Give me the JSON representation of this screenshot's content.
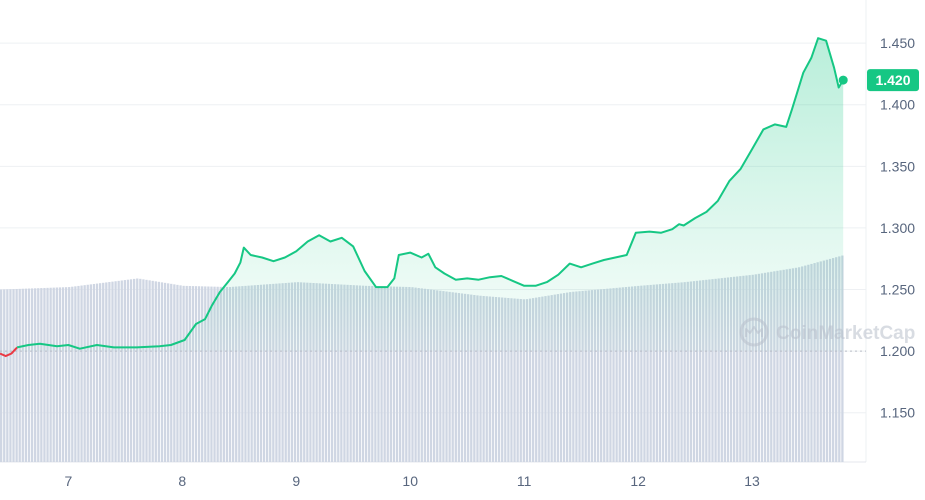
{
  "chart_data": {
    "type": "area",
    "baseline": 1.2,
    "current_price": 1.42,
    "current_price_label": "1.420",
    "watermark": "CoinMarketCap",
    "ylim": [
      1.11,
      1.485
    ],
    "xlim": [
      6.0,
      13.6
    ],
    "y_ticks": [
      {
        "value": 1.45,
        "label": "1.450"
      },
      {
        "value": 1.4,
        "label": "1.400"
      },
      {
        "value": 1.35,
        "label": "1.350"
      },
      {
        "value": 1.3,
        "label": "1.300"
      },
      {
        "value": 1.25,
        "label": "1.250"
      },
      {
        "value": 1.2,
        "label": "1.200"
      },
      {
        "value": 1.15,
        "label": "1.150"
      }
    ],
    "x_ticks": [
      {
        "value": 6.6,
        "label": "7"
      },
      {
        "value": 7.6,
        "label": "8"
      },
      {
        "value": 8.6,
        "label": "9"
      },
      {
        "value": 9.6,
        "label": "10"
      },
      {
        "value": 10.6,
        "label": "11"
      },
      {
        "value": 11.6,
        "label": "12"
      },
      {
        "value": 12.6,
        "label": "13"
      }
    ],
    "price": [
      [
        6.0,
        1.198
      ],
      [
        6.05,
        1.196
      ],
      [
        6.1,
        1.198
      ],
      [
        6.15,
        1.203
      ],
      [
        6.25,
        1.205
      ],
      [
        6.35,
        1.206
      ],
      [
        6.5,
        1.204
      ],
      [
        6.6,
        1.205
      ],
      [
        6.7,
        1.202
      ],
      [
        6.85,
        1.205
      ],
      [
        7.0,
        1.203
      ],
      [
        7.2,
        1.203
      ],
      [
        7.4,
        1.204
      ],
      [
        7.5,
        1.205
      ],
      [
        7.62,
        1.209
      ],
      [
        7.72,
        1.222
      ],
      [
        7.8,
        1.226
      ],
      [
        7.86,
        1.237
      ],
      [
        7.93,
        1.248
      ],
      [
        8.0,
        1.256
      ],
      [
        8.06,
        1.263
      ],
      [
        8.11,
        1.272
      ],
      [
        8.14,
        1.284
      ],
      [
        8.2,
        1.278
      ],
      [
        8.3,
        1.276
      ],
      [
        8.4,
        1.273
      ],
      [
        8.5,
        1.276
      ],
      [
        8.6,
        1.281
      ],
      [
        8.7,
        1.289
      ],
      [
        8.8,
        1.294
      ],
      [
        8.9,
        1.289
      ],
      [
        9.0,
        1.292
      ],
      [
        9.1,
        1.285
      ],
      [
        9.2,
        1.265
      ],
      [
        9.3,
        1.252
      ],
      [
        9.4,
        1.252
      ],
      [
        9.46,
        1.259
      ],
      [
        9.5,
        1.278
      ],
      [
        9.6,
        1.28
      ],
      [
        9.7,
        1.276
      ],
      [
        9.76,
        1.279
      ],
      [
        9.82,
        1.268
      ],
      [
        9.9,
        1.263
      ],
      [
        10.0,
        1.258
      ],
      [
        10.1,
        1.259
      ],
      [
        10.2,
        1.258
      ],
      [
        10.3,
        1.26
      ],
      [
        10.4,
        1.261
      ],
      [
        10.5,
        1.257
      ],
      [
        10.6,
        1.253
      ],
      [
        10.7,
        1.253
      ],
      [
        10.8,
        1.256
      ],
      [
        10.9,
        1.262
      ],
      [
        11.0,
        1.271
      ],
      [
        11.1,
        1.268
      ],
      [
        11.2,
        1.271
      ],
      [
        11.3,
        1.274
      ],
      [
        11.4,
        1.276
      ],
      [
        11.5,
        1.278
      ],
      [
        11.58,
        1.296
      ],
      [
        11.7,
        1.297
      ],
      [
        11.8,
        1.296
      ],
      [
        11.9,
        1.299
      ],
      [
        11.96,
        1.303
      ],
      [
        12.0,
        1.302
      ],
      [
        12.1,
        1.308
      ],
      [
        12.2,
        1.313
      ],
      [
        12.3,
        1.322
      ],
      [
        12.4,
        1.338
      ],
      [
        12.5,
        1.348
      ],
      [
        12.6,
        1.364
      ],
      [
        12.7,
        1.38
      ],
      [
        12.8,
        1.384
      ],
      [
        12.9,
        1.382
      ],
      [
        12.95,
        1.396
      ],
      [
        13.0,
        1.411
      ],
      [
        13.05,
        1.426
      ],
      [
        13.12,
        1.438
      ],
      [
        13.18,
        1.454
      ],
      [
        13.25,
        1.452
      ],
      [
        13.32,
        1.43
      ],
      [
        13.36,
        1.414
      ],
      [
        13.4,
        1.42
      ]
    ],
    "volume": [
      [
        6.0,
        0.14
      ],
      [
        6.6,
        0.142
      ],
      [
        7.2,
        0.149
      ],
      [
        7.6,
        0.143
      ],
      [
        8.0,
        0.142
      ],
      [
        8.6,
        0.146
      ],
      [
        9.2,
        0.143
      ],
      [
        9.6,
        0.142
      ],
      [
        10.2,
        0.135
      ],
      [
        10.6,
        0.132
      ],
      [
        11.0,
        0.138
      ],
      [
        11.6,
        0.143
      ],
      [
        12.0,
        0.146
      ],
      [
        12.6,
        0.152
      ],
      [
        13.0,
        0.158
      ],
      [
        13.4,
        0.168
      ]
    ]
  }
}
